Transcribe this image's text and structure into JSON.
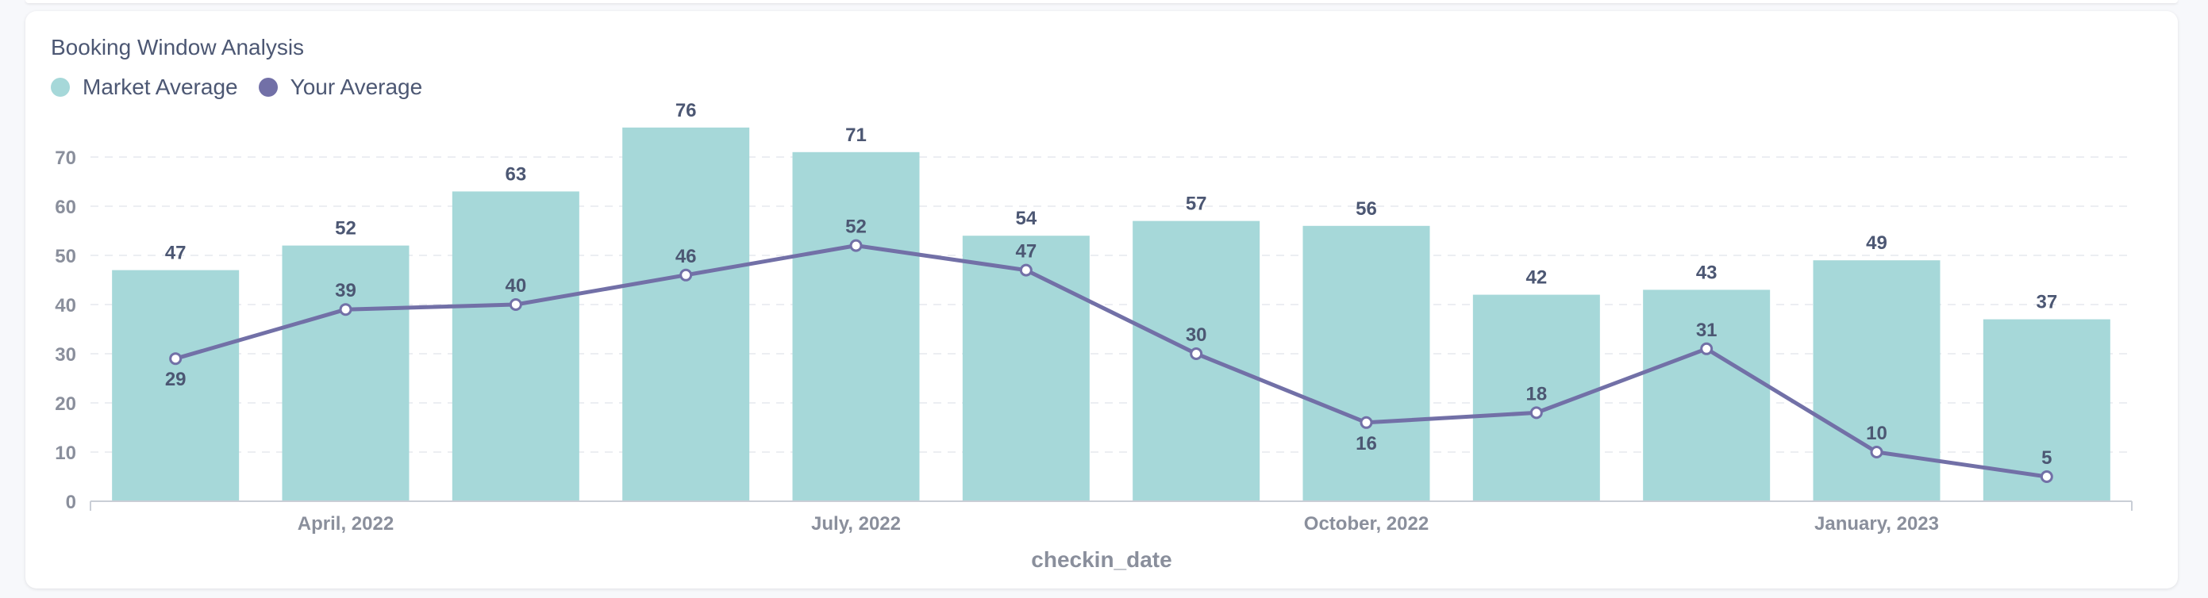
{
  "card": {
    "title": "Booking Window Analysis"
  },
  "colors": {
    "market": "#a6d8d9",
    "yours": "#7270a7",
    "text": "#4c5773",
    "muted": "#8a8f9c",
    "grid": "#eceef2"
  },
  "chart_data": {
    "type": "bar",
    "title": "Booking Window Analysis",
    "xlabel": "checkin_date",
    "ylabel": "",
    "ylim": [
      0,
      76
    ],
    "yticks": [
      0,
      10,
      20,
      30,
      40,
      50,
      60,
      70
    ],
    "grid": true,
    "legend_position": "top-left",
    "x_tick_labels": [
      {
        "index": 1,
        "label": "April, 2022"
      },
      {
        "index": 4,
        "label": "July, 2022"
      },
      {
        "index": 7,
        "label": "October, 2022"
      },
      {
        "index": 10,
        "label": "January, 2023"
      }
    ],
    "series": [
      {
        "name": "Market Average",
        "type": "bar",
        "color": "#a6d8d9",
        "values": [
          47,
          52,
          63,
          76,
          71,
          54,
          57,
          56,
          42,
          43,
          49,
          37
        ]
      },
      {
        "name": "Your Average",
        "type": "line",
        "color": "#7270a7",
        "values": [
          29,
          39,
          40,
          46,
          52,
          47,
          30,
          16,
          18,
          31,
          10,
          5
        ]
      }
    ]
  }
}
